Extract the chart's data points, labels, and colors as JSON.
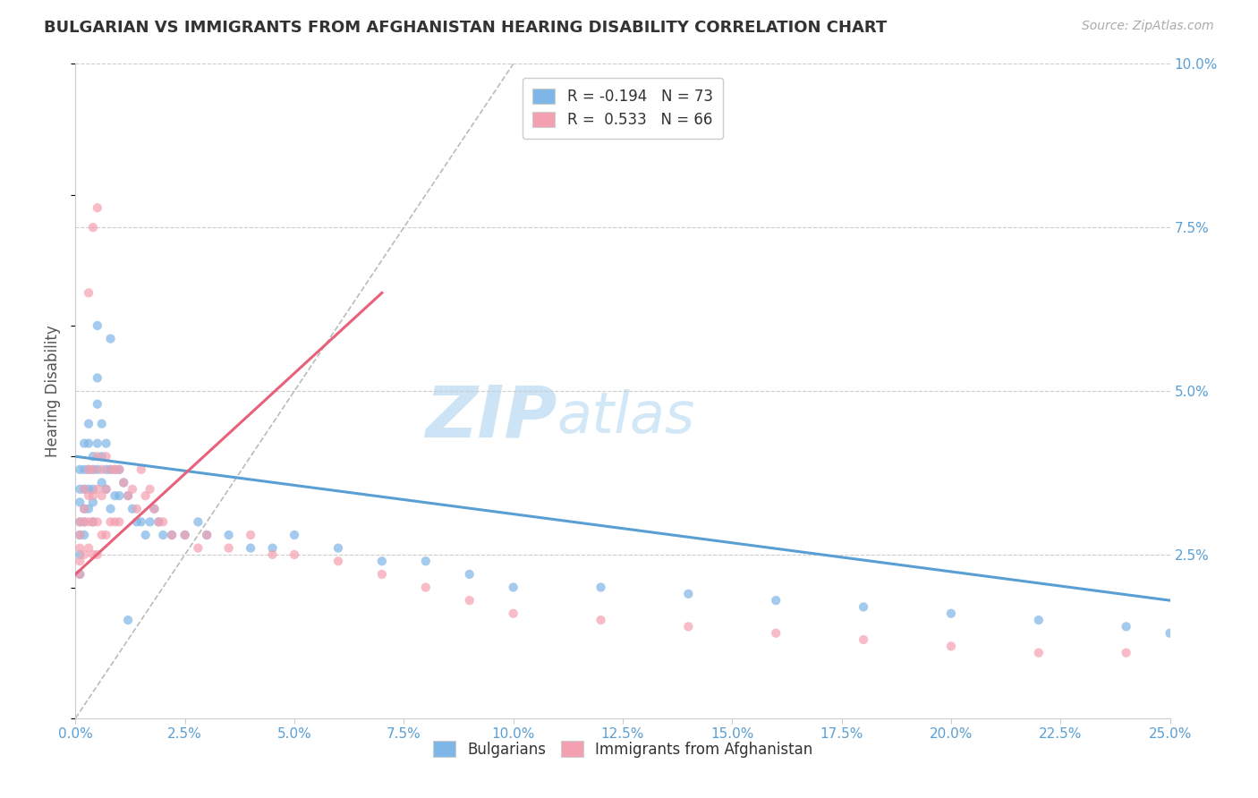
{
  "title": "BULGARIAN VS IMMIGRANTS FROM AFGHANISTAN HEARING DISABILITY CORRELATION CHART",
  "source_text": "Source: ZipAtlas.com",
  "ylabel": "Hearing Disability",
  "legend_label_1": "Bulgarians",
  "legend_label_2": "Immigrants from Afghanistan",
  "R1": -0.194,
  "N1": 73,
  "R2": 0.533,
  "N2": 66,
  "xlim": [
    0.0,
    0.25
  ],
  "ylim": [
    0.0,
    0.1
  ],
  "x_ticks": [
    0.0,
    0.025,
    0.05,
    0.075,
    0.1,
    0.125,
    0.15,
    0.175,
    0.2,
    0.225,
    0.25
  ],
  "y_ticks_right": [
    0.025,
    0.05,
    0.075,
    0.1
  ],
  "color_bulgarians": "#7eb6e8",
  "color_afghanistan": "#f4a0b0",
  "trendline_color_1": "#5a9fd4",
  "trendline_color_2": "#e8607a",
  "background_color": "#ffffff",
  "watermark_color": "#cce4f5",
  "title_fontsize": 13,
  "scatter_size": 55,
  "scatter_alpha": 0.7,
  "bulgarians_x": [
    0.001,
    0.001,
    0.001,
    0.001,
    0.001,
    0.001,
    0.001,
    0.002,
    0.002,
    0.002,
    0.002,
    0.002,
    0.002,
    0.003,
    0.003,
    0.003,
    0.003,
    0.003,
    0.004,
    0.004,
    0.004,
    0.004,
    0.004,
    0.005,
    0.005,
    0.005,
    0.005,
    0.006,
    0.006,
    0.006,
    0.007,
    0.007,
    0.007,
    0.008,
    0.008,
    0.009,
    0.009,
    0.01,
    0.01,
    0.011,
    0.012,
    0.013,
    0.014,
    0.015,
    0.016,
    0.017,
    0.018,
    0.019,
    0.02,
    0.022,
    0.025,
    0.028,
    0.03,
    0.035,
    0.04,
    0.045,
    0.05,
    0.06,
    0.07,
    0.08,
    0.09,
    0.1,
    0.12,
    0.14,
    0.16,
    0.18,
    0.2,
    0.22,
    0.24,
    0.25,
    0.005,
    0.008,
    0.012
  ],
  "bulgarians_y": [
    0.038,
    0.035,
    0.033,
    0.03,
    0.028,
    0.025,
    0.022,
    0.042,
    0.038,
    0.035,
    0.032,
    0.03,
    0.028,
    0.045,
    0.042,
    0.038,
    0.035,
    0.032,
    0.04,
    0.038,
    0.035,
    0.033,
    0.03,
    0.052,
    0.048,
    0.042,
    0.038,
    0.045,
    0.04,
    0.036,
    0.042,
    0.038,
    0.035,
    0.038,
    0.032,
    0.038,
    0.034,
    0.038,
    0.034,
    0.036,
    0.034,
    0.032,
    0.03,
    0.03,
    0.028,
    0.03,
    0.032,
    0.03,
    0.028,
    0.028,
    0.028,
    0.03,
    0.028,
    0.028,
    0.026,
    0.026,
    0.028,
    0.026,
    0.024,
    0.024,
    0.022,
    0.02,
    0.02,
    0.019,
    0.018,
    0.017,
    0.016,
    0.015,
    0.014,
    0.013,
    0.06,
    0.058,
    0.015
  ],
  "afghanistan_x": [
    0.001,
    0.001,
    0.001,
    0.001,
    0.001,
    0.002,
    0.002,
    0.002,
    0.002,
    0.003,
    0.003,
    0.003,
    0.003,
    0.004,
    0.004,
    0.004,
    0.004,
    0.005,
    0.005,
    0.005,
    0.005,
    0.006,
    0.006,
    0.006,
    0.007,
    0.007,
    0.007,
    0.008,
    0.008,
    0.009,
    0.009,
    0.01,
    0.01,
    0.011,
    0.012,
    0.013,
    0.014,
    0.015,
    0.016,
    0.017,
    0.018,
    0.019,
    0.02,
    0.022,
    0.025,
    0.028,
    0.03,
    0.035,
    0.04,
    0.045,
    0.05,
    0.06,
    0.07,
    0.08,
    0.09,
    0.1,
    0.12,
    0.14,
    0.16,
    0.18,
    0.2,
    0.22,
    0.24,
    0.003,
    0.004,
    0.005
  ],
  "afghanistan_y": [
    0.03,
    0.028,
    0.026,
    0.024,
    0.022,
    0.035,
    0.032,
    0.03,
    0.025,
    0.038,
    0.034,
    0.03,
    0.026,
    0.038,
    0.034,
    0.03,
    0.025,
    0.04,
    0.035,
    0.03,
    0.025,
    0.038,
    0.034,
    0.028,
    0.04,
    0.035,
    0.028,
    0.038,
    0.03,
    0.038,
    0.03,
    0.038,
    0.03,
    0.036,
    0.034,
    0.035,
    0.032,
    0.038,
    0.034,
    0.035,
    0.032,
    0.03,
    0.03,
    0.028,
    0.028,
    0.026,
    0.028,
    0.026,
    0.028,
    0.025,
    0.025,
    0.024,
    0.022,
    0.02,
    0.018,
    0.016,
    0.015,
    0.014,
    0.013,
    0.012,
    0.011,
    0.01,
    0.01,
    0.065,
    0.075,
    0.078
  ],
  "trendline1_x0": 0.0,
  "trendline1_y0": 0.04,
  "trendline1_x1": 0.25,
  "trendline1_y1": 0.018,
  "trendline2_x0": 0.0,
  "trendline2_y0": 0.022,
  "trendline2_x1": 0.07,
  "trendline2_y1": 0.065,
  "ref_line_x0": 0.0,
  "ref_line_y0": 0.0,
  "ref_line_x1": 0.1,
  "ref_line_y1": 0.1
}
